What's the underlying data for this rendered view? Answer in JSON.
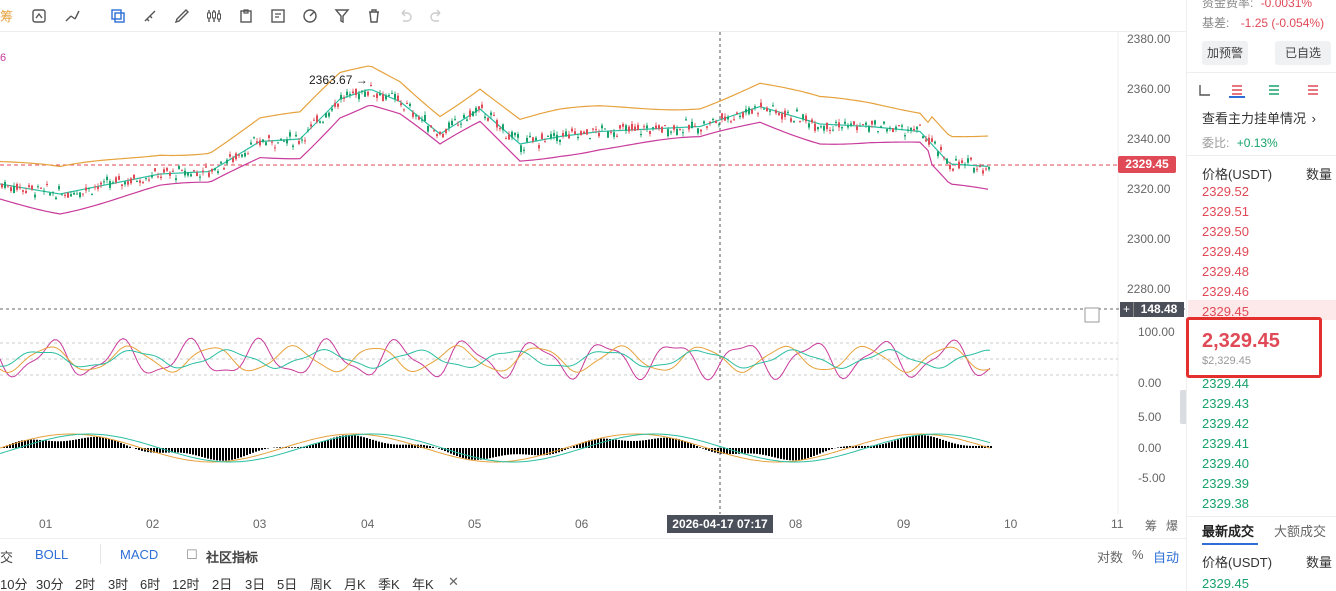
{
  "toolbar": {
    "left_label": "筹",
    "icons": [
      "settings-icon",
      "magnet-icon",
      "trend-line-icon",
      "copy-icon",
      "ruler-icon",
      "brush-icon",
      "candle-icon",
      "clipboard-icon",
      "note-icon",
      "measure-icon",
      "filter-icon",
      "trash-icon",
      "undo-icon",
      "redo-icon"
    ]
  },
  "chart": {
    "indicator_value": "6",
    "y_axis_main": [
      "2380.00",
      "2360.00",
      "2340.00",
      "2320.00",
      "2300.00",
      "2280.00"
    ],
    "y_axis_osc": [
      "100.00",
      "0.00"
    ],
    "y_axis_macd": [
      "5.00",
      "0.00",
      "-5.00"
    ],
    "current_price_tag": "2329.45",
    "crosshair_value": "148.48",
    "crosshair_plus": "+",
    "peak_label": "2363.67 →",
    "crosshair_date": "2026-04-17 07:17",
    "x_axis": [
      "01",
      "02",
      "03",
      "04",
      "05",
      "06",
      "08",
      "09",
      "10",
      "11"
    ],
    "x_axis_right": [
      "筹",
      "爆"
    ]
  },
  "indicator_bar": {
    "first": "交",
    "boll": "BOLL",
    "macd": "MACD",
    "community": "社区指标",
    "right_log": "对数",
    "right_pct": "%",
    "right_auto": "自动"
  },
  "timeframes": [
    "10分",
    "30分",
    "2时",
    "3时",
    "6时",
    "12时",
    "2日",
    "3日",
    "5日",
    "周K",
    "月K",
    "季K",
    "年K"
  ],
  "timeframe_close": "✕",
  "panel": {
    "funding_label": "资金费率:",
    "funding_value": "-0.0031%",
    "basis_label": "基差:",
    "basis_value": "-1.25 (-0.054%)",
    "alert_btn": "加预警",
    "fav_btn": "已自选",
    "main_orders_link": "查看主力挂单情况",
    "commission_label": "委比:",
    "commission_value": "+0.13%",
    "price_header": "价格(USDT)",
    "qty_header": "数量",
    "asks": [
      "2329.52",
      "2329.51",
      "2329.50",
      "2329.49",
      "2329.48",
      "2329.46",
      "2329.45"
    ],
    "current_price": "2,329.45",
    "current_price_usd": "$2,329.45",
    "bids": [
      "2329.44",
      "2329.43",
      "2329.42",
      "2329.41",
      "2329.40",
      "2329.39",
      "2329.38"
    ],
    "tab_latest": "最新成交",
    "tab_large": "大额成交",
    "trade_price_header": "价格(USDT)",
    "trade_qty_header": "数量",
    "trade_first": "2329.45"
  },
  "colors": {
    "up": "#18a26b",
    "down": "#e04956",
    "boll_upper": "#e6a23c",
    "boll_mid": "#2bbfa2",
    "boll_lower": "#c93b9c",
    "highlight": "#e3302f"
  }
}
